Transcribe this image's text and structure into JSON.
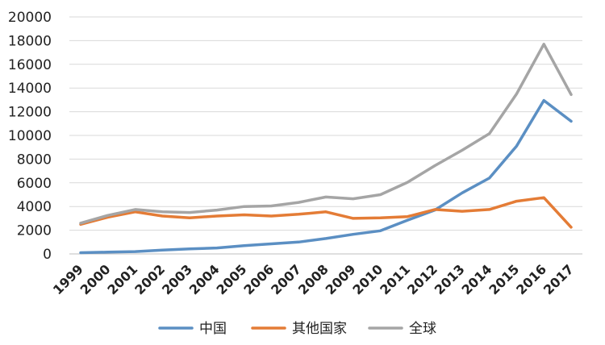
{
  "chart_data": {
    "type": "line",
    "title": "",
    "xlabel": "",
    "ylabel": "",
    "x": [
      "1999",
      "2000",
      "2001",
      "2002",
      "2003",
      "2004",
      "2005",
      "2006",
      "2007",
      "2008",
      "2009",
      "2010",
      "2011",
      "2012",
      "2013",
      "2014",
      "2015",
      "2016",
      "2017"
    ],
    "ylim": [
      0,
      20000
    ],
    "yticks": [
      0,
      2000,
      4000,
      6000,
      8000,
      10000,
      12000,
      14000,
      16000,
      18000,
      20000
    ],
    "grid": true,
    "legend_position": "bottom",
    "series": [
      {
        "name": "中国",
        "color": "#5b8fc3",
        "values": [
          100,
          150,
          200,
          320,
          420,
          500,
          700,
          850,
          1000,
          1300,
          1650,
          1950,
          2850,
          3700,
          5150,
          6400,
          9100,
          12950,
          11200
        ]
      },
      {
        "name": "其他国家",
        "color": "#e47c36",
        "values": [
          2500,
          3100,
          3550,
          3200,
          3050,
          3200,
          3300,
          3200,
          3350,
          3550,
          3000,
          3050,
          3150,
          3750,
          3600,
          3750,
          4450,
          4750,
          2250
        ]
      },
      {
        "name": "全球",
        "color": "#a5a5a5",
        "values": [
          2600,
          3250,
          3750,
          3550,
          3500,
          3700,
          4000,
          4050,
          4350,
          4800,
          4650,
          5000,
          6050,
          7450,
          8750,
          10150,
          13500,
          17700,
          13450
        ]
      }
    ]
  }
}
